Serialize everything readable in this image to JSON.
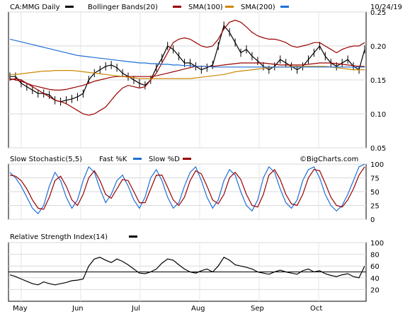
{
  "chart_data": [
    {
      "type": "line",
      "title": "",
      "date_label": "10/24/19",
      "legend": [
        {
          "label": "CA:MMG Daily",
          "color": "#000000"
        },
        {
          "label": "Bollinger Bands(20)",
          "color": "#000000"
        },
        {
          "label": "SMA(100)",
          "color": "#990000"
        },
        {
          "label": "SMA(200)",
          "color": "#cc8800"
        },
        {
          "label": "",
          "color": "#1f6fd6"
        }
      ],
      "ylim": [
        0.05,
        0.25
      ],
      "yticks": [
        "0.25",
        "0.20",
        "0.15",
        "0.10",
        "0.05"
      ],
      "xlabels": [
        "May",
        "Jun",
        "Jul",
        "Aug",
        "Sep",
        "Oct"
      ],
      "grid": true,
      "series": [
        {
          "name": "CA:MMG Daily",
          "color": "#000000",
          "values": [
            0.155,
            0.155,
            0.145,
            0.14,
            0.135,
            0.13,
            0.13,
            0.128,
            0.12,
            0.118,
            0.12,
            0.122,
            0.125,
            0.13,
            0.15,
            0.16,
            0.165,
            0.17,
            0.172,
            0.168,
            0.16,
            0.155,
            0.15,
            0.145,
            0.142,
            0.15,
            0.168,
            0.182,
            0.2,
            0.195,
            0.185,
            0.175,
            0.175,
            0.17,
            0.165,
            0.168,
            0.172,
            0.2,
            0.23,
            0.22,
            0.205,
            0.19,
            0.195,
            0.185,
            0.178,
            0.17,
            0.165,
            0.17,
            0.18,
            0.175,
            0.17,
            0.165,
            0.17,
            0.18,
            0.19,
            0.2,
            0.185,
            0.175,
            0.17,
            0.175,
            0.18,
            0.17,
            0.165,
            0.195
          ]
        },
        {
          "name": "Bollinger Bands(20)",
          "color": "#990000",
          "values": [
            0.15,
            0.152,
            0.15,
            0.145,
            0.14,
            0.135,
            0.13,
            0.125,
            0.12,
            0.118,
            0.115,
            0.11,
            0.105,
            0.1,
            0.098,
            0.1,
            0.105,
            0.11,
            0.12,
            0.13,
            0.138,
            0.142,
            0.14,
            0.138,
            0.14,
            0.15,
            0.16,
            0.175,
            0.19,
            0.205,
            0.21,
            0.212,
            0.21,
            0.205,
            0.2,
            0.198,
            0.2,
            0.21,
            0.225,
            0.235,
            0.238,
            0.235,
            0.228,
            0.22,
            0.215,
            0.212,
            0.21,
            0.21,
            0.208,
            0.205,
            0.2,
            0.198,
            0.2,
            0.202,
            0.205,
            0.205,
            0.2,
            0.195,
            0.19,
            0.195,
            0.198,
            0.2,
            0.2,
            0.205
          ]
        },
        {
          "name": "SMA(100)",
          "color": "#990000",
          "values": [
            0.152,
            0.15,
            0.148,
            0.145,
            0.142,
            0.14,
            0.138,
            0.136,
            0.135,
            0.135,
            0.136,
            0.138,
            0.14,
            0.142,
            0.145,
            0.148,
            0.15,
            0.152,
            0.154,
            0.155,
            0.155,
            0.155,
            0.155,
            0.155,
            0.155,
            0.155,
            0.156,
            0.158,
            0.16,
            0.162,
            0.164,
            0.166,
            0.168,
            0.17,
            0.17,
            0.17,
            0.17,
            0.171,
            0.172,
            0.173,
            0.174,
            0.175,
            0.175,
            0.175,
            0.175,
            0.175,
            0.174,
            0.173,
            0.172,
            0.172,
            0.172,
            0.172,
            0.172,
            0.173,
            0.174,
            0.175,
            0.175,
            0.175,
            0.174,
            0.173,
            0.172,
            0.171,
            0.17,
            0.17
          ]
        },
        {
          "name": "SMA(200)",
          "color": "#cc8800",
          "values": [
            0.158,
            0.158,
            0.159,
            0.16,
            0.161,
            0.162,
            0.163,
            0.163,
            0.164,
            0.164,
            0.164,
            0.164,
            0.163,
            0.162,
            0.161,
            0.16,
            0.159,
            0.158,
            0.157,
            0.156,
            0.155,
            0.154,
            0.153,
            0.152,
            0.152,
            0.152,
            0.152,
            0.152,
            0.152,
            0.152,
            0.152,
            0.152,
            0.152,
            0.153,
            0.154,
            0.155,
            0.156,
            0.157,
            0.158,
            0.16,
            0.162,
            0.163,
            0.164,
            0.165,
            0.166,
            0.167,
            0.168,
            0.169,
            0.169,
            0.169,
            0.17,
            0.17,
            0.17,
            0.17,
            0.17,
            0.17,
            0.17,
            0.169,
            0.168,
            0.167,
            0.166,
            0.165,
            0.165,
            0.165
          ]
        },
        {
          "name": "",
          "color": "#1f6fd6",
          "values": [
            0.21,
            0.208,
            0.206,
            0.204,
            0.202,
            0.2,
            0.198,
            0.196,
            0.194,
            0.192,
            0.19,
            0.188,
            0.186,
            0.185,
            0.184,
            0.183,
            0.182,
            0.181,
            0.18,
            0.179,
            0.178,
            0.177,
            0.176,
            0.175,
            0.175,
            0.174,
            0.174,
            0.173,
            0.173,
            0.172,
            0.172,
            0.171,
            0.171,
            0.17,
            0.17,
            0.17,
            0.169,
            0.169,
            0.169,
            0.169,
            0.169,
            0.169,
            0.169,
            0.169,
            0.169,
            0.169,
            0.169,
            0.169,
            0.169,
            0.169,
            0.169,
            0.169,
            0.169,
            0.169,
            0.169,
            0.169,
            0.169,
            0.169,
            0.169,
            0.169,
            0.169,
            0.169,
            0.169,
            0.169
          ]
        }
      ]
    },
    {
      "type": "line",
      "title": "Slow Stochastic(5,5) Fast %K",
      "legend": [
        {
          "label": "Slow Stochastic(5,5)",
          "color": "#000000"
        },
        {
          "label": "Fast %K",
          "color": "#1f6fd6"
        },
        {
          "label": "Slow %D",
          "color": "#990000"
        }
      ],
      "watermark": "©BigCharts.com",
      "ylim": [
        0,
        100
      ],
      "yticks": [
        "100",
        "75",
        "50",
        "25",
        "0"
      ],
      "grid": true,
      "series": [
        {
          "name": "Fast %K",
          "color": "#1f6fd6",
          "values": [
            85,
            75,
            60,
            40,
            20,
            10,
            25,
            60,
            85,
            70,
            40,
            20,
            35,
            70,
            95,
            85,
            55,
            30,
            45,
            70,
            80,
            60,
            35,
            20,
            40,
            75,
            90,
            70,
            40,
            20,
            30,
            60,
            85,
            95,
            70,
            40,
            20,
            35,
            70,
            90,
            80,
            50,
            25,
            15,
            35,
            75,
            95,
            85,
            55,
            30,
            20,
            35,
            70,
            90,
            95,
            75,
            45,
            25,
            15,
            25,
            45,
            70,
            95,
            100
          ]
        },
        {
          "name": "Slow %D",
          "color": "#990000",
          "values": [
            80,
            78,
            70,
            55,
            35,
            20,
            18,
            40,
            70,
            78,
            60,
            35,
            25,
            45,
            75,
            88,
            70,
            45,
            38,
            55,
            72,
            70,
            50,
            30,
            30,
            55,
            80,
            80,
            58,
            35,
            25,
            40,
            70,
            88,
            82,
            60,
            35,
            28,
            45,
            75,
            85,
            72,
            45,
            25,
            22,
            45,
            80,
            90,
            72,
            45,
            28,
            25,
            45,
            75,
            90,
            88,
            65,
            40,
            25,
            22,
            35,
            55,
            80,
            95
          ]
        }
      ]
    },
    {
      "type": "line",
      "title": "Relative Strength Index(14)",
      "legend": [
        {
          "label": "Relative Strength Index(14)",
          "color": "#000000"
        }
      ],
      "ylim": [
        0,
        100
      ],
      "yticks": [
        "100",
        "80",
        "60",
        "40",
        "20"
      ],
      "reference_line": 50,
      "grid": true,
      "series": [
        {
          "name": "Relative Strength Index(14)",
          "color": "#000000",
          "values": [
            45,
            42,
            38,
            34,
            30,
            28,
            33,
            30,
            28,
            30,
            32,
            35,
            36,
            38,
            60,
            72,
            75,
            70,
            66,
            72,
            68,
            62,
            55,
            48,
            47,
            50,
            55,
            65,
            72,
            70,
            62,
            55,
            50,
            48,
            52,
            55,
            50,
            60,
            75,
            70,
            62,
            60,
            58,
            55,
            50,
            48,
            46,
            50,
            53,
            50,
            48,
            46,
            52,
            55,
            50,
            52,
            47,
            44,
            42,
            45,
            47,
            42,
            40,
            60
          ]
        }
      ]
    }
  ]
}
